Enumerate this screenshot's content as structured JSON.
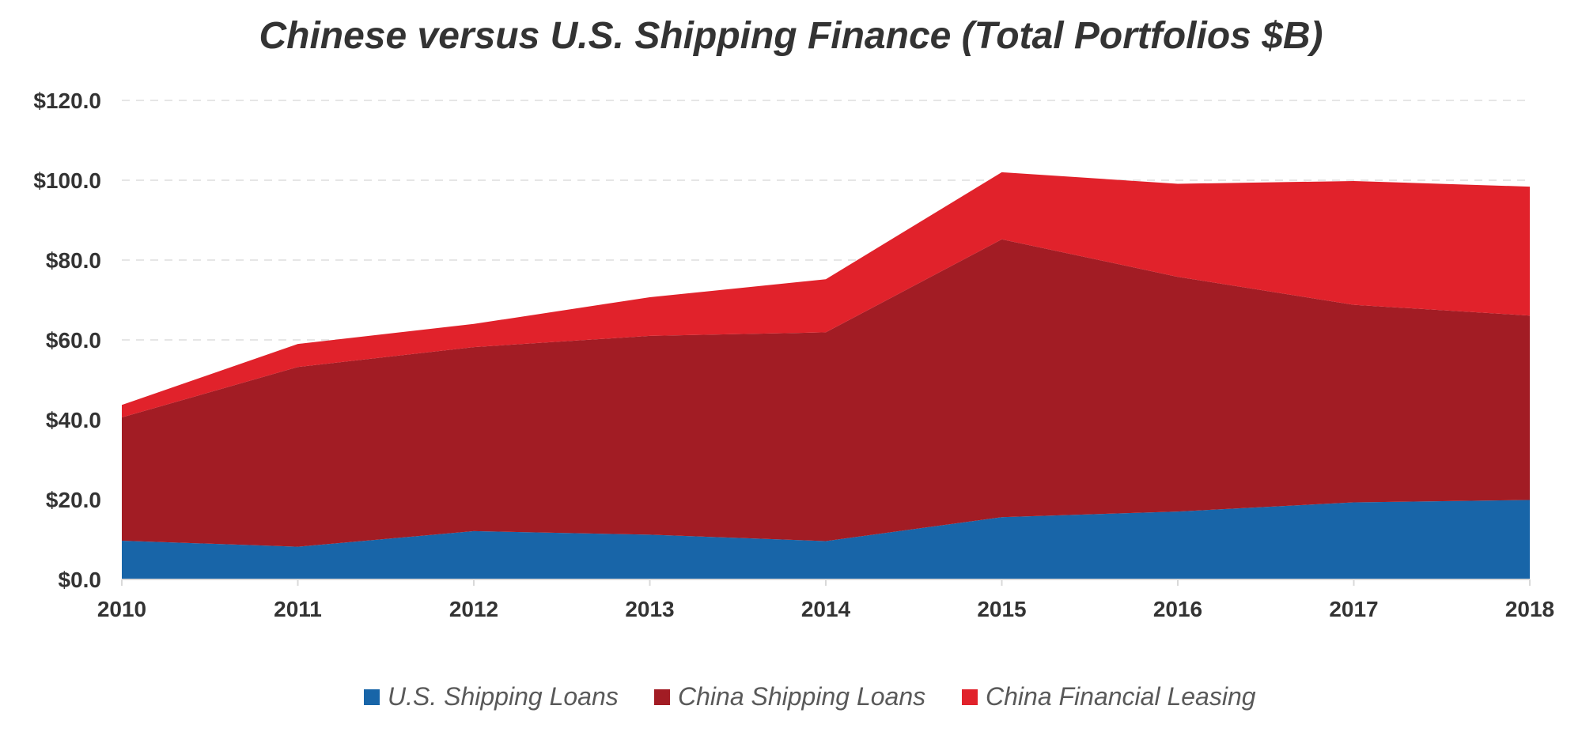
{
  "chart_data": {
    "type": "area",
    "stacked": true,
    "title": "Chinese versus U.S. Shipping Finance (Total Portfolios $B)",
    "xlabel": "",
    "ylabel": "",
    "x": [
      "2010",
      "2011",
      "2012",
      "2013",
      "2014",
      "2015",
      "2016",
      "2017",
      "2018"
    ],
    "ylim": [
      0,
      120
    ],
    "yticks": [
      0,
      20,
      40,
      60,
      80,
      100,
      120
    ],
    "ytick_labels": [
      "$0.0",
      "$20.0",
      "$40.0",
      "$60.0",
      "$80.0",
      "$100.0",
      "$120.0"
    ],
    "grid": "horizontal dashed",
    "legend_position": "bottom",
    "series": [
      {
        "name": "U.S. Shipping Loans",
        "color": "#1865A8",
        "values": [
          9.7,
          8.2,
          12.1,
          11.2,
          9.6,
          15.6,
          17.0,
          19.3,
          19.9
        ]
      },
      {
        "name": "China Shipping Loans",
        "color": "#A21C24",
        "values": [
          30.9,
          45.0,
          46.1,
          49.8,
          52.3,
          69.6,
          58.8,
          49.5,
          46.2
        ]
      },
      {
        "name": "China Financial Leasing",
        "color": "#E1222B",
        "values": [
          3.1,
          5.8,
          5.8,
          9.7,
          13.3,
          16.8,
          23.3,
          31.0,
          32.3
        ]
      }
    ]
  }
}
